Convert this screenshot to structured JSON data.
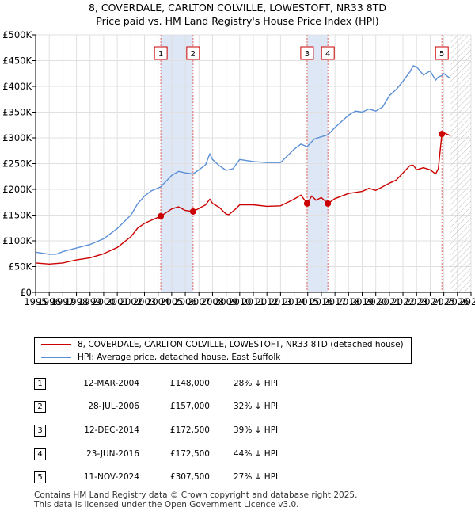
{
  "title_line1": "8, COVERDALE, CARLTON COLVILLE, LOWESTOFT, NR33 8TD",
  "title_line2": "Price paid vs. HM Land Registry's House Price Index (HPI)",
  "chart_data": {
    "type": "line",
    "xlim": [
      1995,
      2027
    ],
    "ylim": [
      0,
      500000
    ],
    "x_ticks": [
      "1995",
      "1996",
      "1997",
      "1998",
      "1999",
      "2000",
      "2001",
      "2002",
      "2003",
      "2004",
      "2005",
      "2006",
      "2007",
      "2008",
      "2009",
      "2010",
      "2011",
      "2012",
      "2013",
      "2014",
      "2015",
      "2016",
      "2017",
      "2018",
      "2019",
      "2020",
      "2021",
      "2022",
      "2023",
      "2024",
      "2025",
      "2026",
      "2027"
    ],
    "y_ticks": [
      {
        "value": 0,
        "label": "£0"
      },
      {
        "value": 50000,
        "label": "£50K"
      },
      {
        "value": 100000,
        "label": "£100K"
      },
      {
        "value": 150000,
        "label": "£150K"
      },
      {
        "value": 200000,
        "label": "£200K"
      },
      {
        "value": 250000,
        "label": "£250K"
      },
      {
        "value": 300000,
        "label": "£300K"
      },
      {
        "value": 350000,
        "label": "£350K"
      },
      {
        "value": 400000,
        "label": "£400K"
      },
      {
        "value": 450000,
        "label": "£450K"
      },
      {
        "value": 500000,
        "label": "£500K"
      }
    ],
    "grid": true,
    "hatch_from": 2025.5,
    "shaded_spans": [
      [
        2004.2,
        2006.57
      ],
      [
        2014.95,
        2016.48
      ]
    ],
    "series": [
      {
        "name": "8, COVERDALE, CARLTON COLVILLE, LOWESTOFT, NR33 8TD (detached house)",
        "color": "#cc0000",
        "x": [
          1995.0,
          1996.0,
          1997.0,
          1997.5,
          1998.0,
          1999.0,
          2000.0,
          2001.0,
          2002.0,
          2002.5,
          2003.0,
          2003.5,
          2004.2,
          2005.0,
          2005.5,
          2006.0,
          2006.57,
          2007.0,
          2007.5,
          2007.8,
          2008.0,
          2008.5,
          2009.0,
          2009.2,
          2009.7,
          2010.0,
          2011.0,
          2012.0,
          2013.0,
          2014.0,
          2014.5,
          2014.95,
          2015.3,
          2015.6,
          2016.0,
          2016.48,
          2017.0,
          2018.0,
          2019.0,
          2019.5,
          2020.0,
          2020.5,
          2021.0,
          2021.5,
          2022.0,
          2022.5,
          2022.75,
          2023.0,
          2023.5,
          2024.0,
          2024.4,
          2024.6,
          2024.86,
          2025.0,
          2025.5
        ],
        "y": [
          57000,
          55000,
          57000,
          60000,
          63000,
          67000,
          75000,
          87000,
          108000,
          125000,
          134000,
          140000,
          148000,
          162000,
          166000,
          159000,
          157000,
          163000,
          170000,
          181000,
          173000,
          165000,
          152000,
          151000,
          162000,
          170000,
          170000,
          167000,
          168000,
          181000,
          189000,
          172500,
          187000,
          179000,
          184000,
          172500,
          182000,
          192000,
          196000,
          202000,
          198000,
          205000,
          212000,
          218000,
          232000,
          246000,
          247000,
          238000,
          242000,
          238000,
          230000,
          240000,
          307500,
          310000,
          304000
        ]
      },
      {
        "name": "HPI: Average price, detached house, East Suffolk",
        "color": "#5b8fd6",
        "x": [
          1995.0,
          1996.0,
          1996.5,
          1997.0,
          1998.0,
          1999.0,
          2000.0,
          2001.0,
          2002.0,
          2002.5,
          2003.0,
          2003.5,
          2004.2,
          2005.0,
          2005.5,
          2006.0,
          2006.57,
          2007.0,
          2007.5,
          2007.8,
          2008.0,
          2008.5,
          2009.0,
          2009.5,
          2010.0,
          2011.0,
          2012.0,
          2013.0,
          2014.0,
          2014.5,
          2014.95,
          2015.5,
          2016.0,
          2016.48,
          2017.0,
          2018.0,
          2018.5,
          2019.0,
          2019.5,
          2020.0,
          2020.5,
          2021.0,
          2021.5,
          2022.0,
          2022.5,
          2022.75,
          2023.0,
          2023.5,
          2024.0,
          2024.4,
          2024.6,
          2024.86,
          2025.0,
          2025.5
        ],
        "y": [
          78000,
          74000,
          74000,
          79000,
          86000,
          93000,
          104000,
          124000,
          150000,
          172000,
          187000,
          197000,
          205000,
          227000,
          235000,
          232000,
          230000,
          238000,
          248000,
          269000,
          258000,
          246000,
          237000,
          240000,
          258000,
          254000,
          252000,
          252000,
          278000,
          288000,
          283000,
          298000,
          302000,
          306000,
          320000,
          344000,
          352000,
          350000,
          356000,
          352000,
          360000,
          382000,
          394000,
          410000,
          428000,
          440000,
          438000,
          422000,
          430000,
          412000,
          418000,
          421000,
          425000,
          415000
        ]
      }
    ],
    "sales": [
      {
        "id": "1",
        "x": 2004.2,
        "y": 148000
      },
      {
        "id": "2",
        "x": 2006.57,
        "y": 157000
      },
      {
        "id": "3",
        "x": 2014.95,
        "y": 172500
      },
      {
        "id": "4",
        "x": 2016.48,
        "y": 172500
      },
      {
        "id": "5",
        "x": 2024.86,
        "y": 307500
      }
    ]
  },
  "legend": {
    "property": "8, COVERDALE, CARLTON COLVILLE, LOWESTOFT, NR33 8TD (detached house)",
    "hpi": "HPI: Average price, detached house, East Suffolk"
  },
  "transactions": [
    {
      "id": "1",
      "date": "12-MAR-2004",
      "price": "£148,000",
      "hpi": "28% ↓ HPI"
    },
    {
      "id": "2",
      "date": "28-JUL-2006",
      "price": "£157,000",
      "hpi": "32% ↓ HPI"
    },
    {
      "id": "3",
      "date": "12-DEC-2014",
      "price": "£172,500",
      "hpi": "39% ↓ HPI"
    },
    {
      "id": "4",
      "date": "23-JUN-2016",
      "price": "£172,500",
      "hpi": "44% ↓ HPI"
    },
    {
      "id": "5",
      "date": "11-NOV-2024",
      "price": "£307,500",
      "hpi": "27% ↓ HPI"
    }
  ],
  "footer_line1": "Contains HM Land Registry data © Crown copyright and database right 2025.",
  "footer_line2": "This data is licensed under the Open Government Licence v3.0."
}
